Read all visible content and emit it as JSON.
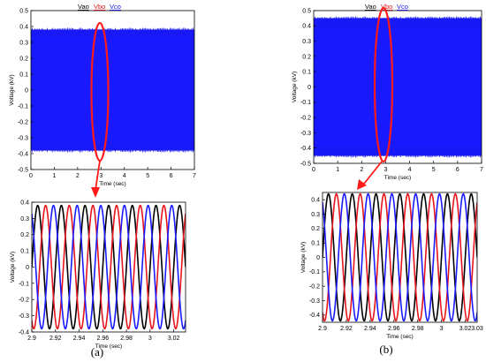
{
  "legend": [
    {
      "label": "Vao",
      "color": "#000000"
    },
    {
      "label": "Vbo",
      "color": "#e8141c"
    },
    {
      "label": "Vco",
      "color": "#1a1aff"
    }
  ],
  "zoom_highlight_color": "#ff1a1a",
  "chart_data": [
    {
      "type": "line",
      "panel": "(a) full",
      "xlabel": "Time (sec)",
      "ylabel": "Voltage (kV)",
      "xlim": [
        0,
        7
      ],
      "ylim": [
        -0.5,
        0.5
      ],
      "xticks": [
        0,
        1,
        2,
        3,
        4,
        5,
        6,
        7
      ],
      "yticks": [
        -0.5,
        -0.4,
        -0.3,
        -0.2,
        -0.1,
        0,
        0.1,
        0.2,
        0.3,
        0.4,
        0.5
      ],
      "amplitude": 0.38,
      "series": [
        {
          "name": "Vao",
          "phase_deg": 0
        },
        {
          "name": "Vbo",
          "phase_deg": -120
        },
        {
          "name": "Vco",
          "phase_deg": 120
        }
      ]
    },
    {
      "type": "line",
      "panel": "(a) zoom",
      "xlabel": "Time (sec)",
      "ylabel": "Voltage (kV)",
      "xlim": [
        2.9,
        3.03
      ],
      "ylim": [
        -0.4,
        0.4
      ],
      "xticks": [
        2.9,
        2.92,
        2.94,
        2.96,
        2.98,
        3,
        3.02
      ],
      "yticks": [
        -0.4,
        -0.3,
        -0.2,
        -0.1,
        0,
        0.1,
        0.2,
        0.3,
        0.4
      ],
      "amplitude": 0.38,
      "frequency_hz": 50,
      "caption": "(a)",
      "series": [
        {
          "name": "Vao",
          "phase_deg": 0
        },
        {
          "name": "Vbo",
          "phase_deg": -120
        },
        {
          "name": "Vco",
          "phase_deg": 120
        }
      ]
    },
    {
      "type": "line",
      "panel": "(b) full",
      "xlabel": "Time (sec)",
      "ylabel": "Voltage (kV)",
      "xlim": [
        0,
        7
      ],
      "ylim": [
        -0.5,
        0.5
      ],
      "xticks": [
        0,
        1,
        2,
        3,
        4,
        5,
        6,
        7
      ],
      "yticks": [
        -0.5,
        -0.4,
        -0.3,
        -0.2,
        -0.1,
        0,
        0.1,
        0.2,
        0.3,
        0.4,
        0.5
      ],
      "amplitude": 0.45,
      "series": [
        {
          "name": "Vao",
          "phase_deg": 0
        },
        {
          "name": "Vbo",
          "phase_deg": -120
        },
        {
          "name": "Vco",
          "phase_deg": 120
        }
      ]
    },
    {
      "type": "line",
      "panel": "(b) zoom",
      "xlabel": "Time (sec)",
      "ylabel": "Voltage (kV)",
      "xlim": [
        2.9,
        3.03
      ],
      "ylim": [
        -0.45,
        0.45
      ],
      "xticks": [
        2.9,
        2.92,
        2.94,
        2.96,
        2.98,
        3,
        3.02,
        3.03
      ],
      "yticks": [
        -0.4,
        -0.3,
        -0.2,
        -0.1,
        0,
        0.1,
        0.2,
        0.3,
        0.4
      ],
      "amplitude": 0.44,
      "frequency_hz": 50,
      "caption": "(b)",
      "series": [
        {
          "name": "Vao",
          "phase_deg": 0
        },
        {
          "name": "Vbo",
          "phase_deg": -120
        },
        {
          "name": "Vco",
          "phase_deg": 120
        }
      ]
    }
  ]
}
